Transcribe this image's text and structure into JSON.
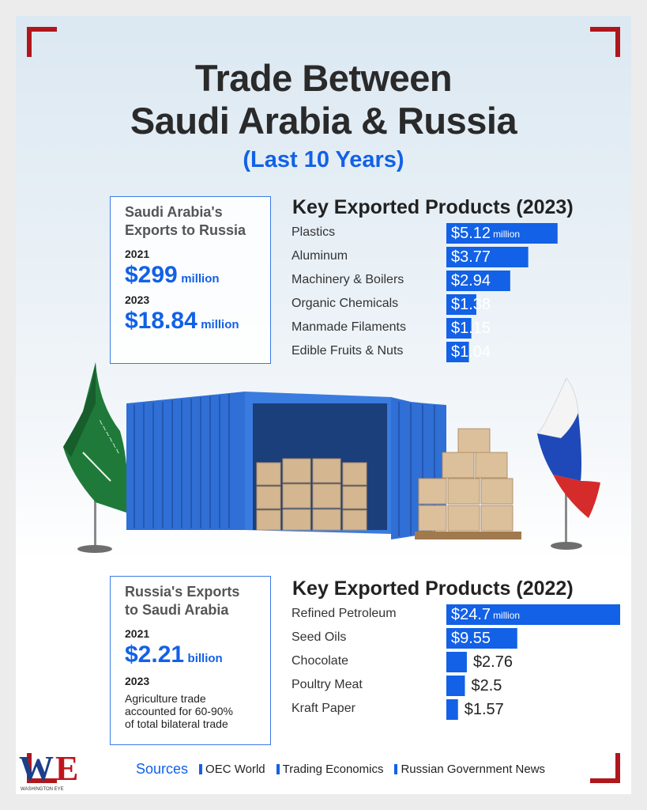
{
  "header": {
    "title_line1": "Trade Between",
    "title_line2": "Saudi Arabia & Russia",
    "subtitle": "(Last 10 Years)"
  },
  "saudi_box": {
    "heading_line1": "Saudi Arabia's",
    "heading_line2": "Exports to Russia",
    "year1": "2021",
    "value1": "$299",
    "unit1": "million",
    "year2": "2023",
    "value2": "$18.84",
    "unit2": "million"
  },
  "russia_box": {
    "heading_line1": "Russia's Exports",
    "heading_line2": "to Saudi Arabia",
    "year1": "2021",
    "value1": "$2.21",
    "unit1": "billion",
    "year2": "2023",
    "note_line1": "Agriculture trade",
    "note_line2": "accounted for 60-90%",
    "note_line3": "of total bilateral trade"
  },
  "chart_data": [
    {
      "type": "bar",
      "orientation": "horizontal",
      "title": "Key Exported Products (2023)",
      "categories": [
        "Plastics",
        "Aluminum",
        "Machinery & Boilers",
        "Organic Chemicals",
        "Manmade Filaments",
        "Edible Fruits & Nuts"
      ],
      "values": [
        5.12,
        3.77,
        2.94,
        1.38,
        1.15,
        1.04
      ],
      "value_labels": [
        "$5.12",
        "$3.77",
        "$2.94",
        "$1.38",
        "$1.15",
        "$1.04"
      ],
      "unit_label": "million",
      "bar_color": "#1261e6"
    },
    {
      "type": "bar",
      "orientation": "horizontal",
      "title": "Key Exported Products (2022)",
      "categories": [
        "Refined Petroleum",
        "Seed Oils",
        "Chocolate",
        "Poultry Meat",
        "Kraft Paper"
      ],
      "values": [
        24.7,
        9.55,
        2.76,
        2.5,
        1.57
      ],
      "value_labels": [
        "$24.7",
        "$9.55",
        "$2.76",
        "$2.5",
        "$1.57"
      ],
      "unit_label": "million",
      "bar_color": "#1261e6"
    }
  ],
  "footer": {
    "sources_label": "Sources",
    "sources": [
      "OEC World",
      "Trading Economics",
      "Russian Government News"
    ],
    "logo_text": "WASHINGTON EYE"
  },
  "colors": {
    "accent": "#1261e6",
    "frame": "#b0171c",
    "flag_green": "#1f7a3a",
    "container_blue": "#2f6fd6"
  }
}
